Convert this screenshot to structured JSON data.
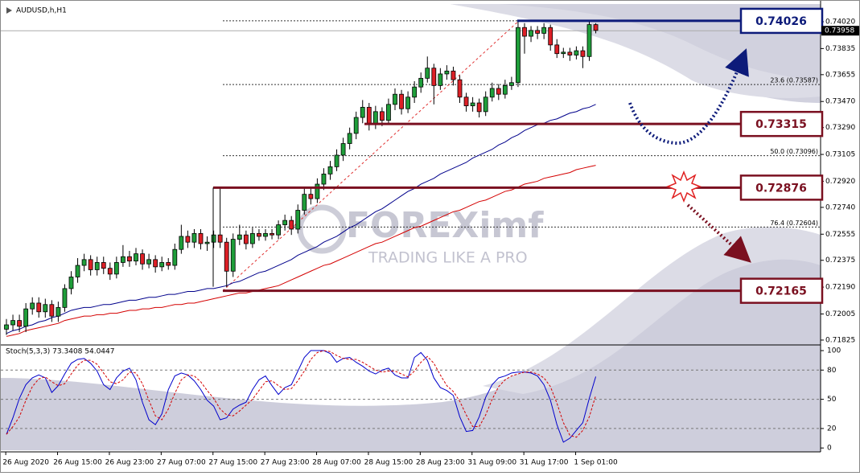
{
  "chart_data": [
    {
      "type": "candlestick",
      "title": "AUDUSD,h,H1",
      "categories": [
        null,
        null,
        null,
        "26 Aug 2020",
        null,
        null,
        null,
        null,
        null,
        null,
        null,
        "26 Aug 15:00",
        null,
        null,
        null,
        null,
        null,
        null,
        null,
        "26 Aug 23:00",
        null,
        null,
        null,
        null,
        null,
        null,
        null,
        "27 Aug 07:00",
        null,
        null,
        null,
        null,
        null,
        null,
        null,
        "27 Aug 15:00",
        null,
        null,
        null,
        null,
        null,
        null,
        null,
        "27 Aug 23:00",
        null,
        null,
        null,
        null,
        null,
        null,
        null,
        "28 Aug 07:00",
        null,
        null,
        null,
        null,
        null,
        null,
        null,
        "28 Aug 15:00",
        null,
        null,
        null,
        null,
        null,
        null,
        null,
        "28 Aug 23:00",
        null,
        null,
        null,
        null,
        null,
        null,
        null,
        "31 Aug 09:00",
        null,
        null,
        null,
        null,
        null,
        null,
        null,
        "31 Aug 17:00",
        null,
        null,
        null,
        null,
        null,
        null,
        null,
        "1 Sep 01:00"
      ],
      "open": [
        0.719,
        0.7193,
        0.7196,
        0.7192,
        0.7204,
        0.7208,
        0.7202,
        0.7207,
        0.7199,
        0.7205,
        0.7218,
        0.7226,
        0.7234,
        0.7238,
        0.7231,
        0.7236,
        0.7232,
        0.7228,
        0.7236,
        0.724,
        0.7237,
        0.7242,
        0.7235,
        0.7238,
        0.7233,
        0.7236,
        0.7234,
        0.7245,
        0.7254,
        0.725,
        0.7256,
        0.7249,
        0.725,
        0.7255,
        0.725,
        0.723,
        0.7252,
        0.7255,
        0.7249,
        0.7256,
        0.7254,
        0.7256,
        0.7255,
        0.7262,
        0.7265,
        0.7259,
        0.7272,
        0.7283,
        0.728,
        0.729,
        0.7297,
        0.7302,
        0.731,
        0.7318,
        0.7325,
        0.7336,
        0.7343,
        0.7331,
        0.734,
        0.7334,
        0.7345,
        0.7352,
        0.7342,
        0.735,
        0.7357,
        0.7363,
        0.737,
        0.7358,
        0.7366,
        0.7368,
        0.7362,
        0.735,
        0.7344,
        0.7346,
        0.734,
        0.735,
        0.7356,
        0.7352,
        0.7358,
        0.736,
        0.7398,
        0.7392,
        0.7396,
        0.7394,
        0.7398,
        0.7386,
        0.738,
        0.7381,
        0.7379,
        0.7382,
        0.7378,
        0.74
      ],
      "high": [
        0.7197,
        0.72,
        0.72,
        0.7208,
        0.7212,
        0.7212,
        0.7211,
        0.721,
        0.7209,
        0.7221,
        0.723,
        0.7239,
        0.7242,
        0.7241,
        0.724,
        0.724,
        0.7236,
        0.724,
        0.7248,
        0.7244,
        0.7246,
        0.7245,
        0.7242,
        0.7241,
        0.724,
        0.7239,
        0.7249,
        0.7262,
        0.7258,
        0.7259,
        0.7259,
        0.7254,
        0.7258,
        0.7288,
        0.7253,
        0.7256,
        0.7262,
        0.7258,
        0.726,
        0.7259,
        0.7259,
        0.7259,
        0.7265,
        0.7269,
        0.7268,
        0.7276,
        0.7287,
        0.7287,
        0.7294,
        0.7301,
        0.7306,
        0.7314,
        0.7322,
        0.7329,
        0.734,
        0.7348,
        0.7346,
        0.7344,
        0.7343,
        0.7349,
        0.7356,
        0.7355,
        0.7354,
        0.7361,
        0.7367,
        0.7378,
        0.7373,
        0.737,
        0.7372,
        0.7371,
        0.7365,
        0.7353,
        0.735,
        0.7349,
        0.7354,
        0.736,
        0.7359,
        0.7362,
        0.7364,
        0.7402,
        0.7401,
        0.7399,
        0.7399,
        0.7401,
        0.74,
        0.739,
        0.7384,
        0.7384,
        0.7385,
        0.7385,
        0.7402,
        0.7401
      ],
      "low": [
        0.7186,
        0.7189,
        0.7188,
        0.7188,
        0.72,
        0.7198,
        0.7198,
        0.7195,
        0.7195,
        0.7202,
        0.7214,
        0.7222,
        0.723,
        0.7227,
        0.7227,
        0.7228,
        0.7224,
        0.7225,
        0.7233,
        0.7233,
        0.7234,
        0.7231,
        0.7232,
        0.7229,
        0.723,
        0.7231,
        0.7231,
        0.7242,
        0.7246,
        0.7246,
        0.7245,
        0.7244,
        0.7246,
        0.7246,
        0.7219,
        0.7226,
        0.7248,
        0.7245,
        0.7246,
        0.7251,
        0.7251,
        0.7252,
        0.7252,
        0.7258,
        0.7255,
        0.7256,
        0.7269,
        0.7276,
        0.7277,
        0.7286,
        0.7293,
        0.7299,
        0.7306,
        0.7314,
        0.7321,
        0.7332,
        0.7327,
        0.7328,
        0.733,
        0.7331,
        0.7341,
        0.7338,
        0.7339,
        0.7346,
        0.7353,
        0.736,
        0.7345,
        0.7355,
        0.7362,
        0.7358,
        0.7346,
        0.734,
        0.734,
        0.7336,
        0.7337,
        0.7347,
        0.7348,
        0.7349,
        0.7355,
        0.7357,
        0.738,
        0.7388,
        0.739,
        0.739,
        0.7382,
        0.7377,
        0.7377,
        0.7375,
        0.7376,
        0.737,
        0.7375,
        0.7394
      ],
      "close": [
        0.7193,
        0.7196,
        0.7192,
        0.7204,
        0.7208,
        0.7202,
        0.7207,
        0.7199,
        0.7205,
        0.7218,
        0.7226,
        0.7234,
        0.7238,
        0.7231,
        0.7236,
        0.7232,
        0.7228,
        0.7236,
        0.724,
        0.7237,
        0.7242,
        0.7235,
        0.7238,
        0.7233,
        0.7236,
        0.7234,
        0.7245,
        0.7254,
        0.725,
        0.7256,
        0.7249,
        0.725,
        0.7255,
        0.725,
        0.723,
        0.7252,
        0.7255,
        0.7249,
        0.7256,
        0.7254,
        0.7256,
        0.7255,
        0.7262,
        0.7265,
        0.7259,
        0.7272,
        0.7283,
        0.728,
        0.729,
        0.7297,
        0.7302,
        0.731,
        0.7318,
        0.7325,
        0.7336,
        0.7343,
        0.7331,
        0.734,
        0.7334,
        0.7345,
        0.7352,
        0.7342,
        0.735,
        0.7357,
        0.7363,
        0.737,
        0.7358,
        0.7366,
        0.7368,
        0.7362,
        0.735,
        0.7344,
        0.7346,
        0.734,
        0.735,
        0.7356,
        0.7352,
        0.7358,
        0.736,
        0.7398,
        0.7392,
        0.7396,
        0.7394,
        0.7398,
        0.7386,
        0.738,
        0.7381,
        0.7379,
        0.7382,
        0.7378,
        0.74,
        0.7396
      ],
      "up_color": "#1f9e3a",
      "down_color": "#dd1f26",
      "overlays": [
        {
          "color": "#00008b",
          "values": [
            0.7187,
            0.7189,
            0.719,
            0.7192,
            0.7193,
            0.7195,
            0.7196,
            0.7198,
            0.7199,
            0.7201,
            0.7203,
            0.7204,
            0.7205,
            0.7205,
            0.7206,
            0.7207,
            0.7207,
            0.7208,
            0.7209,
            0.721,
            0.721,
            0.7211,
            0.7212,
            0.7212,
            0.7213,
            0.7214,
            0.7214,
            0.7215,
            0.7216,
            0.7216,
            0.7217,
            0.7218,
            0.7218,
            0.7219,
            0.722,
            0.7222,
            0.7223,
            0.7225,
            0.7227,
            0.7229,
            0.723,
            0.7232,
            0.7234,
            0.7236,
            0.7238,
            0.7241,
            0.7243,
            0.7245,
            0.7247,
            0.725,
            0.7252,
            0.7254,
            0.7257,
            0.726,
            0.7262,
            0.7265,
            0.7268,
            0.7271,
            0.7273,
            0.7276,
            0.7279,
            0.7282,
            0.7285,
            0.7287,
            0.729,
            0.7292,
            0.7294,
            0.7297,
            0.7299,
            0.7301,
            0.7303,
            0.7305,
            0.7308,
            0.731,
            0.7312,
            0.7314,
            0.7317,
            0.7319,
            0.7322,
            0.7324,
            0.7327,
            0.7329,
            0.7331,
            0.7332,
            0.7334,
            0.7335,
            0.7337,
            0.7339,
            0.734,
            0.7342,
            0.7343,
            0.7345
          ]
        },
        {
          "color": "#d40000",
          "values": [
            0.7185,
            0.7186,
            0.7187,
            0.7189,
            0.719,
            0.7191,
            0.7192,
            0.7193,
            0.7194,
            0.7196,
            0.7197,
            0.7198,
            0.7199,
            0.7199,
            0.72,
            0.72,
            0.7201,
            0.7201,
            0.7202,
            0.7203,
            0.7203,
            0.7204,
            0.7204,
            0.7205,
            0.7205,
            0.7206,
            0.7207,
            0.7207,
            0.7208,
            0.7208,
            0.7209,
            0.721,
            0.7211,
            0.7212,
            0.7213,
            0.7214,
            0.7215,
            0.7215,
            0.7216,
            0.7217,
            0.7218,
            0.7219,
            0.722,
            0.7222,
            0.7224,
            0.7226,
            0.7228,
            0.723,
            0.7232,
            0.7234,
            0.7235,
            0.7237,
            0.7239,
            0.7241,
            0.7243,
            0.7245,
            0.7247,
            0.7249,
            0.725,
            0.7252,
            0.7254,
            0.7256,
            0.7258,
            0.726,
            0.7261,
            0.7263,
            0.7265,
            0.7267,
            0.7269,
            0.7271,
            0.7272,
            0.7274,
            0.7276,
            0.7278,
            0.7279,
            0.7281,
            0.7283,
            0.7285,
            0.7286,
            0.7288,
            0.729,
            0.7291,
            0.7292,
            0.7294,
            0.7295,
            0.7296,
            0.7297,
            0.7298,
            0.73,
            0.7301,
            0.7302,
            0.7303
          ]
        }
      ],
      "ylim": [
        0.71797,
        0.74142
      ],
      "yticks": [
        {
          "value": 0.7402,
          "label": "0.74020"
        },
        0.73835,
        0.73655,
        {
          "value": 0.7347,
          "label": "0.73470"
        },
        {
          "value": 0.7329,
          "label": "0.73290"
        },
        0.73105,
        {
          "value": 0.7292,
          "label": "0.72920"
        },
        {
          "value": 0.7274,
          "label": "0.72740"
        },
        0.72555,
        0.72375,
        {
          "value": 0.7219,
          "label": "0.72190"
        },
        0.72005,
        0.71825
      ],
      "last_price": 0.73958,
      "levels": [
        {
          "value": 0.74026,
          "color": "#0d1b7a"
        },
        {
          "value": 0.73315,
          "color": "#7a1020"
        },
        {
          "value": 0.72876,
          "color": "#7a1020"
        },
        {
          "value": 0.72165,
          "color": "#7a1020"
        }
      ],
      "fib_levels": [
        {
          "value": 0.73587,
          "label": "23.6 (0.73587)"
        },
        {
          "value": 0.73096,
          "label": "50.0 (0.73096)"
        },
        {
          "value": 0.72604,
          "label": "76.4 (0.72604)"
        }
      ],
      "watermark": {
        "brand": "FOREXimf",
        "tagline": "TRADING LIKE A PRO"
      }
    },
    {
      "type": "stochastic",
      "title": "Stoch(5,3,3) 73.3408 54.0447",
      "series": [
        {
          "color": "#0000cc",
          "values": [
            14,
            31,
            51,
            65,
            72,
            75,
            72,
            57,
            64,
            76,
            87,
            91,
            92,
            87,
            79,
            65,
            60,
            72,
            79,
            82,
            70,
            47,
            29,
            24,
            35,
            60,
            74,
            77,
            75,
            69,
            60,
            49,
            43,
            29,
            31,
            40,
            44,
            47,
            60,
            70,
            74,
            64,
            55,
            62,
            65,
            79,
            93,
            100,
            100,
            100,
            97,
            88,
            92,
            93,
            88,
            84,
            79,
            76,
            80,
            82,
            75,
            72,
            72,
            93,
            98,
            90,
            72,
            62,
            59,
            54,
            32,
            17,
            18,
            32,
            52,
            65,
            72,
            74,
            77,
            78,
            78,
            77,
            74,
            65,
            49,
            24,
            6,
            10,
            18,
            26,
            51,
            73.3408
          ]
        },
        {
          "color": "#d40000",
          "dashed": true,
          "values": [
            14,
            22,
            32,
            49,
            63,
            71,
            73,
            68,
            64,
            66,
            76,
            85,
            90,
            90,
            86,
            77,
            68,
            66,
            70,
            78,
            77,
            66,
            49,
            33,
            29,
            40,
            56,
            70,
            75,
            74,
            68,
            59,
            51,
            40,
            34,
            33,
            38,
            44,
            50,
            59,
            68,
            69,
            64,
            60,
            61,
            69,
            79,
            91,
            98,
            100,
            99,
            95,
            92,
            91,
            91,
            88,
            84,
            80,
            78,
            79,
            79,
            76,
            73,
            79,
            88,
            94,
            87,
            75,
            64,
            58,
            48,
            34,
            22,
            22,
            34,
            50,
            63,
            70,
            74,
            76,
            78,
            78,
            76,
            72,
            63,
            46,
            26,
            13,
            11,
            18,
            32,
            54.0447
          ]
        }
      ],
      "ylim": [
        -4,
        105
      ],
      "yticks": [
        100,
        80,
        50,
        20,
        0
      ]
    }
  ]
}
